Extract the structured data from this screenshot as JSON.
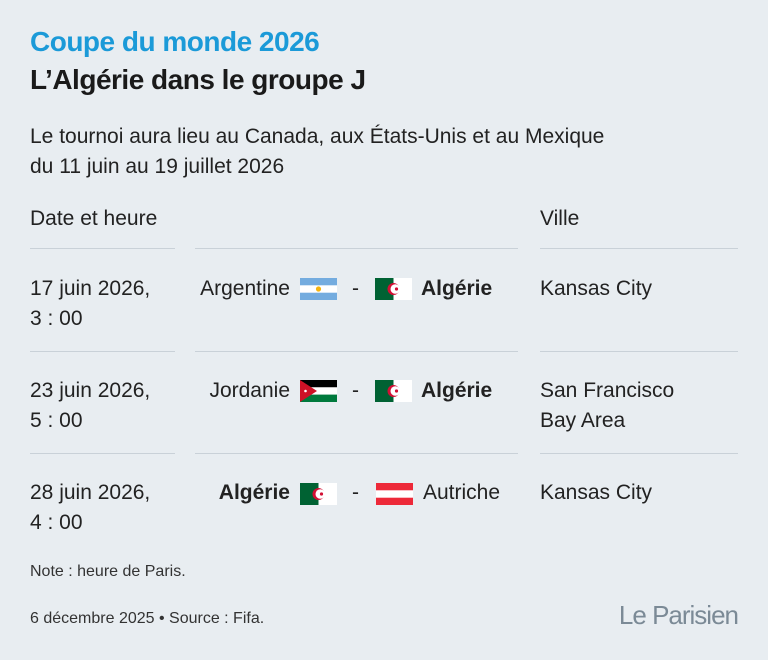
{
  "header": {
    "title": "Coupe du monde 2026",
    "subtitle": "L’Algérie dans le groupe J"
  },
  "description": [
    "Le tournoi aura lieu au Canada, aux États-Unis et au Mexique",
    "du 11 juin au 19 juillet 2026"
  ],
  "table": {
    "headers": [
      "Date et heure",
      "Ville"
    ],
    "rows": [
      {
        "date": [
          "17 juin 2026,",
          "3 : 00"
        ],
        "team1": "Argentine",
        "separator": "-",
        "team2": "Algérie",
        "city": [
          "Kansas City"
        ]
      },
      {
        "date": [
          "23 juin 2026,",
          "5 : 00"
        ],
        "team1": "Jordanie",
        "separator": "-",
        "team2": "Algérie",
        "city": [
          "San Francisco",
          "Bay Area"
        ]
      },
      {
        "date": [
          "28 juin 2026,",
          "4 : 00"
        ],
        "team1": "Algérie",
        "separator": "-",
        "team2": "Autriche",
        "city": [
          "Kansas City"
        ]
      }
    ]
  },
  "note": "Note : heure de Paris.",
  "footer": {
    "source": "6 décembre 2025 • Source : Fifa.",
    "logo": "Le Parisien"
  }
}
